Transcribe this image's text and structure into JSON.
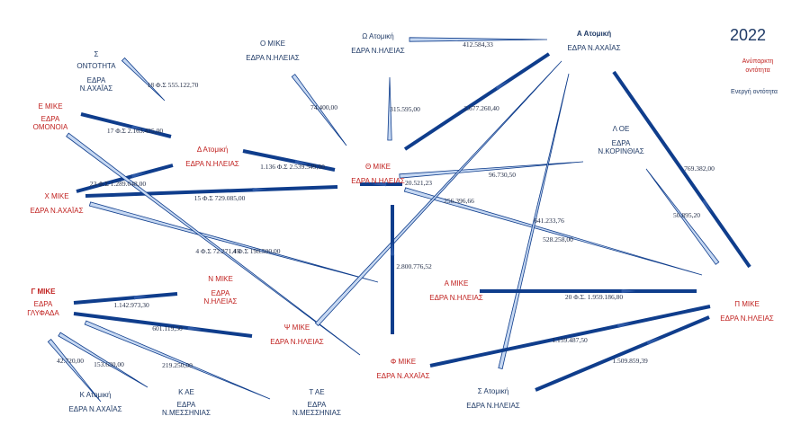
{
  "year": "2022",
  "legend": {
    "inactive": [
      "Ανύπαρκτη",
      "οντότητα"
    ],
    "active": "Ενεργή οντότητα"
  },
  "colors": {
    "inactive": "#c0211f",
    "active": "#1f3a66",
    "edge_dark": "#0f3d8c",
    "edge_light": "#c6d8f2"
  },
  "nodes": [
    {
      "id": "sigma",
      "lines": [
        "Σ",
        "ΟΝΤΟΤΗΤΑ",
        "ΕΔΡΑ",
        "Ν.ΑΧΑΪΑΣ"
      ],
      "status": "active"
    },
    {
      "id": "o_mike",
      "lines": [
        "Ο ΜΙΚΕ",
        "ΕΔΡΑ Ν.ΗΛΕΙΑΣ"
      ],
      "status": "active"
    },
    {
      "id": "omega",
      "lines": [
        "Ω Ατομική",
        "ΕΔΡΑ Ν.ΗΛΕΙΑΣ"
      ],
      "status": "active"
    },
    {
      "id": "a_atomiki",
      "lines": [
        "Α Ατομική",
        "ΕΔΡΑ Ν.ΑΧΑΪΑΣ"
      ],
      "status": "active"
    },
    {
      "id": "e_mike",
      "lines": [
        "Ε ΜΙΚΕ",
        "ΕΔΡΑ",
        "ΟΜΟΝΟΙΑ"
      ],
      "status": "inactive"
    },
    {
      "id": "d_atomiki",
      "lines": [
        "Δ Ατομική",
        "ΕΔΡΑ Ν.ΗΛΕΙΑΣ"
      ],
      "status": "inactive"
    },
    {
      "id": "theta",
      "lines": [
        "Θ ΜΙΚΕ",
        "ΕΔΡΑ Ν.ΗΛΕΙΑΣ"
      ],
      "status": "inactive"
    },
    {
      "id": "lambda",
      "lines": [
        "Λ ΟΕ",
        "ΕΔΡΑ",
        "Ν.ΚΟΡΙΝΘΙΑΣ"
      ],
      "status": "active"
    },
    {
      "id": "chi",
      "lines": [
        "Χ ΜΙΚΕ",
        "ΕΔΡΑ Ν.ΑΧΑΪΑΣ"
      ],
      "status": "inactive"
    },
    {
      "id": "n_mike",
      "lines": [
        "Ν ΜΙΚΕ",
        "ΕΔΡΑ",
        "Ν.ΗΛΕΙΑΣ"
      ],
      "status": "inactive"
    },
    {
      "id": "a_mike",
      "lines": [
        "Α ΜΙΚΕ",
        "ΕΔΡΑ Ν.ΗΛΕΙΑΣ"
      ],
      "status": "inactive"
    },
    {
      "id": "pi",
      "lines": [
        "Π ΜΙΚΕ",
        "ΕΔΡΑ Ν.ΗΛΕΙΑΣ"
      ],
      "status": "inactive"
    },
    {
      "id": "gamma",
      "lines": [
        "Γ ΜΙΚΕ",
        "ΕΔΡΑ",
        "ΓΛΥΦΑΔΑ"
      ],
      "status": "inactive"
    },
    {
      "id": "psi",
      "lines": [
        "Ψ ΜΙΚΕ",
        "ΕΔΡΑ Ν.ΗΛΕΙΑΣ"
      ],
      "status": "inactive"
    },
    {
      "id": "phi",
      "lines": [
        "Φ ΜΙΚΕ",
        "ΕΔΡΑ Ν.ΑΧΑΪΑΣ"
      ],
      "status": "inactive"
    },
    {
      "id": "k_atomiki",
      "lines": [
        "Κ Ατομική",
        "ΕΔΡΑ Ν.ΑΧΑΪΑΣ"
      ],
      "status": "active"
    },
    {
      "id": "k_ae",
      "lines": [
        "Κ ΑΕ",
        "ΕΔΡΑ",
        "Ν.ΜΕΣΣΗΝΙΑΣ"
      ],
      "status": "active"
    },
    {
      "id": "t_ae",
      "lines": [
        "Τ ΑΕ",
        "ΕΔΡΑ",
        "Ν.ΜΕΣΣΗΝΙΑΣ"
      ],
      "status": "active"
    },
    {
      "id": "s_atomiki",
      "lines": [
        "Σ Ατομική",
        "ΕΔΡΑ Ν.ΗΛΕΙΑΣ"
      ],
      "status": "active"
    }
  ],
  "flows": [
    {
      "label": "18 Φ.Σ 555.122,70",
      "style": "light"
    },
    {
      "label": "74.400,00",
      "style": "light"
    },
    {
      "label": "412.584,33",
      "style": "light"
    },
    {
      "label": "315.595,00",
      "style": "light"
    },
    {
      "label": "17 Φ.Σ 2.163.425,00",
      "style": "dark"
    },
    {
      "label": "1.136 Φ.Σ 2.539.549,00",
      "style": "dark"
    },
    {
      "label": "2.677.260,40",
      "style": "dark"
    },
    {
      "label": "23 Φ.Σ 1.289.048,00",
      "style": "dark"
    },
    {
      "label": "15 Φ.Σ 729.085,00",
      "style": "dark"
    },
    {
      "label": "20.521,23",
      "style": "dark"
    },
    {
      "label": "96.730,50",
      "style": "light"
    },
    {
      "label": "769.382,00",
      "style": "dark"
    },
    {
      "label": "50.895,20",
      "style": "light"
    },
    {
      "label": "4 Φ.Σ 72.271,45",
      "style": "light"
    },
    {
      "label": "4 Φ.Σ 198.500,00",
      "style": "light"
    },
    {
      "label": "256.396,66",
      "style": "light"
    },
    {
      "label": "641.233,76",
      "style": "light"
    },
    {
      "label": "528.258,00",
      "style": "light"
    },
    {
      "label": "2.800.776,52",
      "style": "dark"
    },
    {
      "label": "20 Φ.Σ. 1.959.186,80",
      "style": "dark"
    },
    {
      "label": "1.142.973,30",
      "style": "dark"
    },
    {
      "label": "601.119,50",
      "style": "dark"
    },
    {
      "label": "1.159.487,50",
      "style": "dark"
    },
    {
      "label": "1.509.859,39",
      "style": "dark"
    },
    {
      "label": "42.720,00",
      "style": "light"
    },
    {
      "label": "153.630,00",
      "style": "light"
    },
    {
      "label": "219.250,00",
      "style": "light"
    }
  ]
}
